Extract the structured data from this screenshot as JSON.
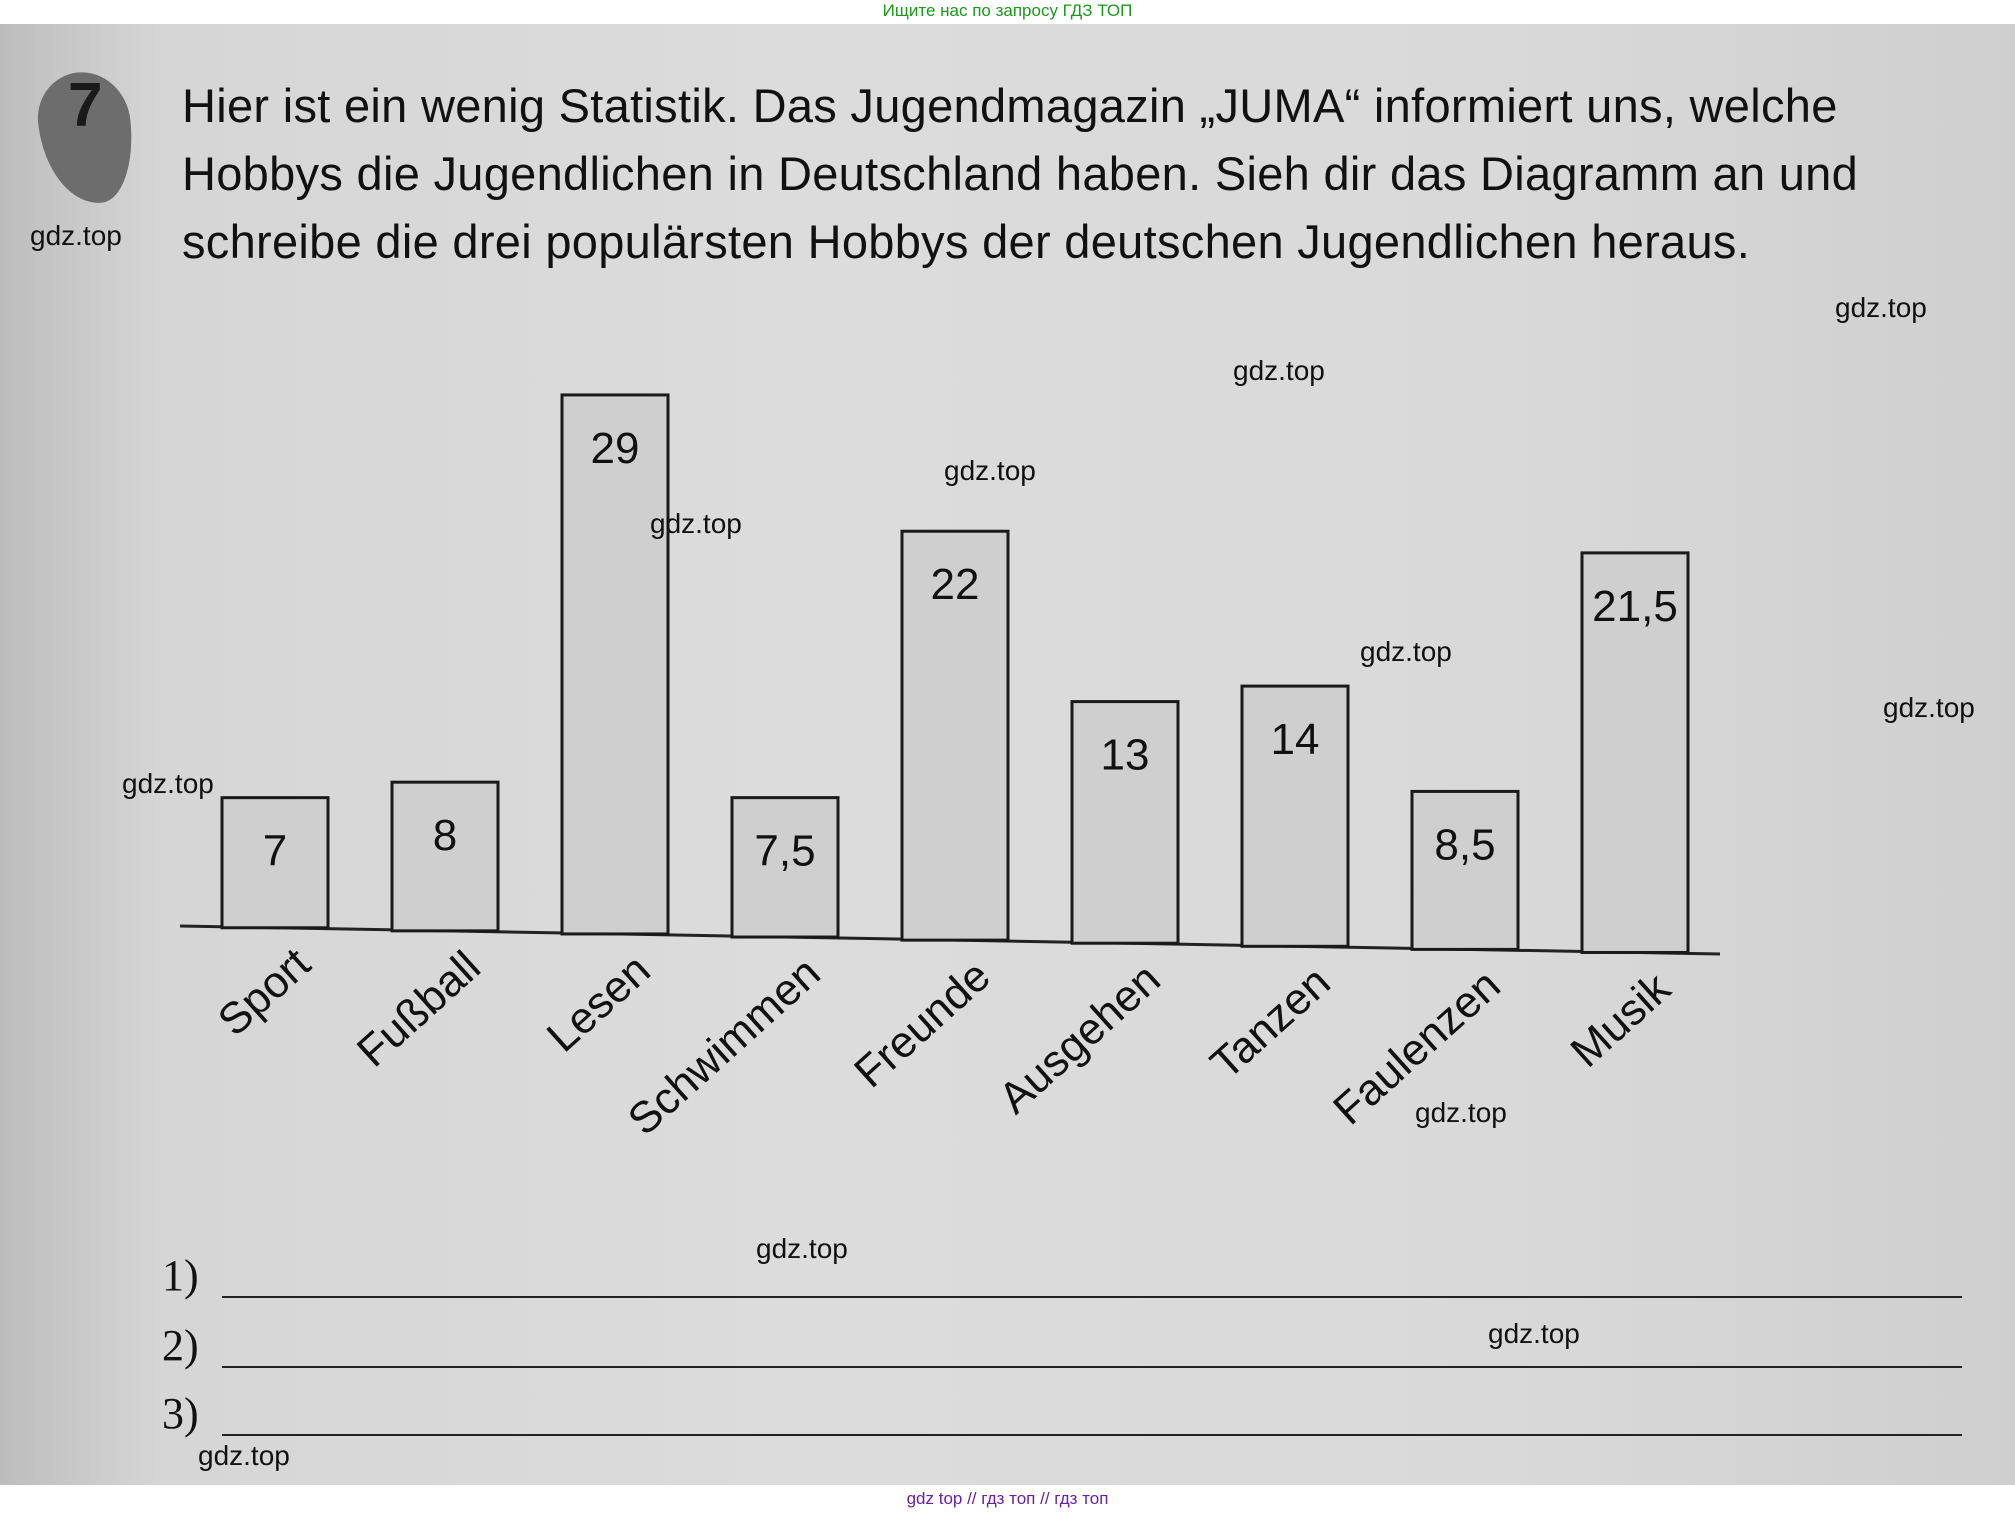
{
  "banner_top": "Ищите нас по запросу ГДЗ ТОП",
  "banner_bottom": "gdz top  //  гдз топ  //  гдз топ",
  "task": {
    "number": "7",
    "text": "Hier ist ein wenig Statistik. Das Jugendmagazin „JUMA“ informiert uns, welche Hobbys die Jugendlichen in Deutschland haben. Sieh dir das Diagramm an und schreibe die drei populärsten Hobbys der deutschen Jugendlichen heraus."
  },
  "watermark": "gdz.top",
  "chart_data": {
    "type": "bar",
    "categories": [
      "Sport",
      "Fußball",
      "Lesen",
      "Schwimmen",
      "Freunde",
      "Ausgehen",
      "Tanzen",
      "Faulenzen",
      "Musik"
    ],
    "values": [
      7,
      8,
      29,
      7.5,
      22,
      13,
      14,
      8.5,
      21.5
    ],
    "value_labels": [
      "7",
      "8",
      "29",
      "7,5",
      "22",
      "13",
      "14",
      "8,5",
      "21,5"
    ],
    "ylim": [
      0,
      29
    ],
    "grid": false,
    "bar_color": "#cfcfcf"
  },
  "answers": [
    {
      "number": "1)"
    },
    {
      "number": "2)"
    },
    {
      "number": "3)"
    }
  ]
}
